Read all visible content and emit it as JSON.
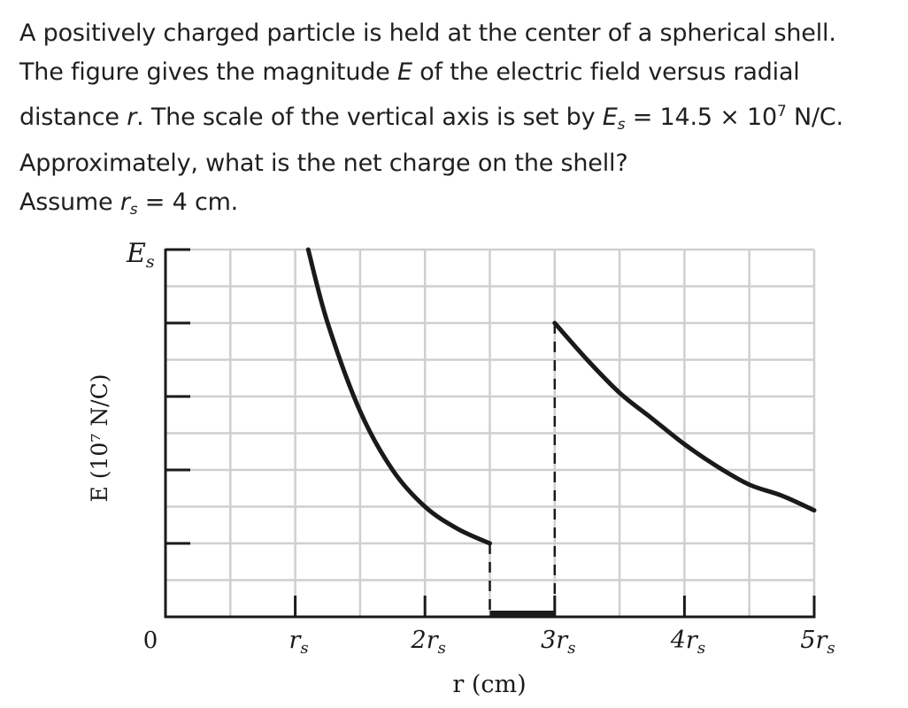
{
  "question": {
    "line1": "A positively charged particle is held at the center of a spherical shell.",
    "line2_a": "The figure gives the magnitude ",
    "line2_E": "E",
    "line2_b": " of the electric field versus radial",
    "line3_a": "distance ",
    "line3_r": "r",
    "line3_b": ". The scale of the vertical axis is set by ",
    "line3_E": "E",
    "line3_s": "s",
    "line3_c": " = 14.5 × 10",
    "line3_exp": "7",
    "line3_d": " N/C.",
    "line4": "Approximately, what is the net charge on the shell?",
    "line5_a": "Assume ",
    "line5_r": "r",
    "line5_s": "s",
    "line5_b": " = 4 cm."
  },
  "chart_data": {
    "type": "line",
    "xlabel": "r (cm)",
    "ylabel": "E (10⁷ N/C)",
    "y_top_label_main": "E",
    "y_top_label_sub": "s",
    "x_origin_label": "0",
    "x_tick_labels": [
      {
        "value": 1,
        "main": "r",
        "sub": "s"
      },
      {
        "value": 2,
        "main": "2r",
        "sub": "s"
      },
      {
        "value": 3,
        "main": "3r",
        "sub": "s"
      },
      {
        "value": 4,
        "main": "4r",
        "sub": "s"
      },
      {
        "value": 5,
        "main": "5r",
        "sub": "s"
      }
    ],
    "xlim": [
      0,
      5
    ],
    "ylim": [
      0,
      1
    ],
    "y_units": "fraction of Es",
    "grid": true,
    "grid_x_step": 0.5,
    "grid_y_step": 0.1,
    "y_major_ticks": [
      0.2,
      0.4,
      0.6,
      0.8,
      1.0
    ],
    "x_major_ticks": [
      1,
      2,
      3,
      4,
      5
    ],
    "series": [
      {
        "segment": "inside",
        "x": [
          1.1,
          1.25,
          1.5,
          1.75,
          2.0,
          2.25,
          2.5
        ],
        "y": [
          1.0,
          0.8,
          0.56,
          0.4,
          0.3,
          0.24,
          0.2
        ]
      },
      {
        "segment": "outside",
        "x": [
          3.0,
          3.25,
          3.5,
          3.75,
          4.0,
          4.25,
          4.5,
          4.75,
          5.0
        ],
        "y": [
          0.8,
          0.7,
          0.61,
          0.54,
          0.47,
          0.41,
          0.36,
          0.33,
          0.29
        ]
      }
    ],
    "shell_region": {
      "x_start": 2.5,
      "x_end": 3.0,
      "y": 0
    }
  }
}
